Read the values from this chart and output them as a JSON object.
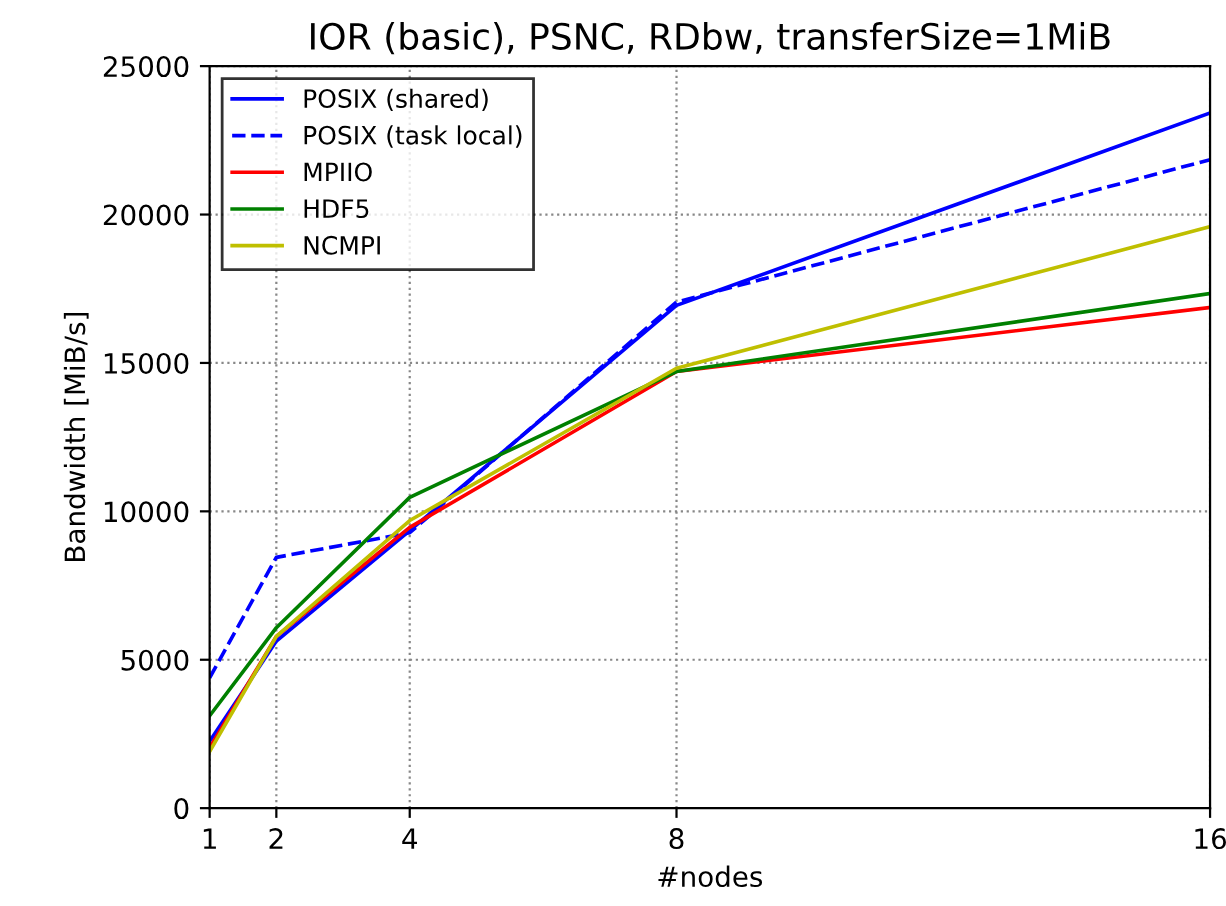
{
  "chart_data": {
    "type": "line",
    "title": "IOR (basic), PSNC, RDbw, transferSize=1MiB",
    "xlabel": "#nodes",
    "ylabel": "Bandwidth [MiB/s]",
    "x": [
      1,
      2,
      4,
      8,
      16
    ],
    "series": [
      {
        "name": "POSIX (shared)",
        "color": "#0000ff",
        "line_style": "solid",
        "values": [
          2250,
          5630,
          9350,
          16940,
          23420
        ]
      },
      {
        "name": "POSIX (task local)",
        "color": "#0000ff",
        "line_style": "dashed",
        "values": [
          4390,
          8450,
          9280,
          17050,
          21850
        ]
      },
      {
        "name": "MPIIO",
        "color": "#ff0000",
        "line_style": "solid",
        "values": [
          2030,
          5790,
          9460,
          14710,
          16870
        ]
      },
      {
        "name": "HDF5",
        "color": "#008000",
        "line_style": "solid",
        "values": [
          3110,
          6080,
          10470,
          14710,
          17340
        ]
      },
      {
        "name": "NCMPI",
        "color": "#bfbf00",
        "line_style": "solid",
        "values": [
          1910,
          5790,
          9690,
          14820,
          19590
        ]
      }
    ],
    "xlim": [
      1,
      16
    ],
    "xticks": [
      1,
      2,
      4,
      8,
      16
    ],
    "ylim": [
      0,
      25000
    ],
    "yticks": [
      0,
      5000,
      10000,
      15000,
      20000,
      25000
    ],
    "grid": true,
    "legend": "top left",
    "marker": "none"
  }
}
